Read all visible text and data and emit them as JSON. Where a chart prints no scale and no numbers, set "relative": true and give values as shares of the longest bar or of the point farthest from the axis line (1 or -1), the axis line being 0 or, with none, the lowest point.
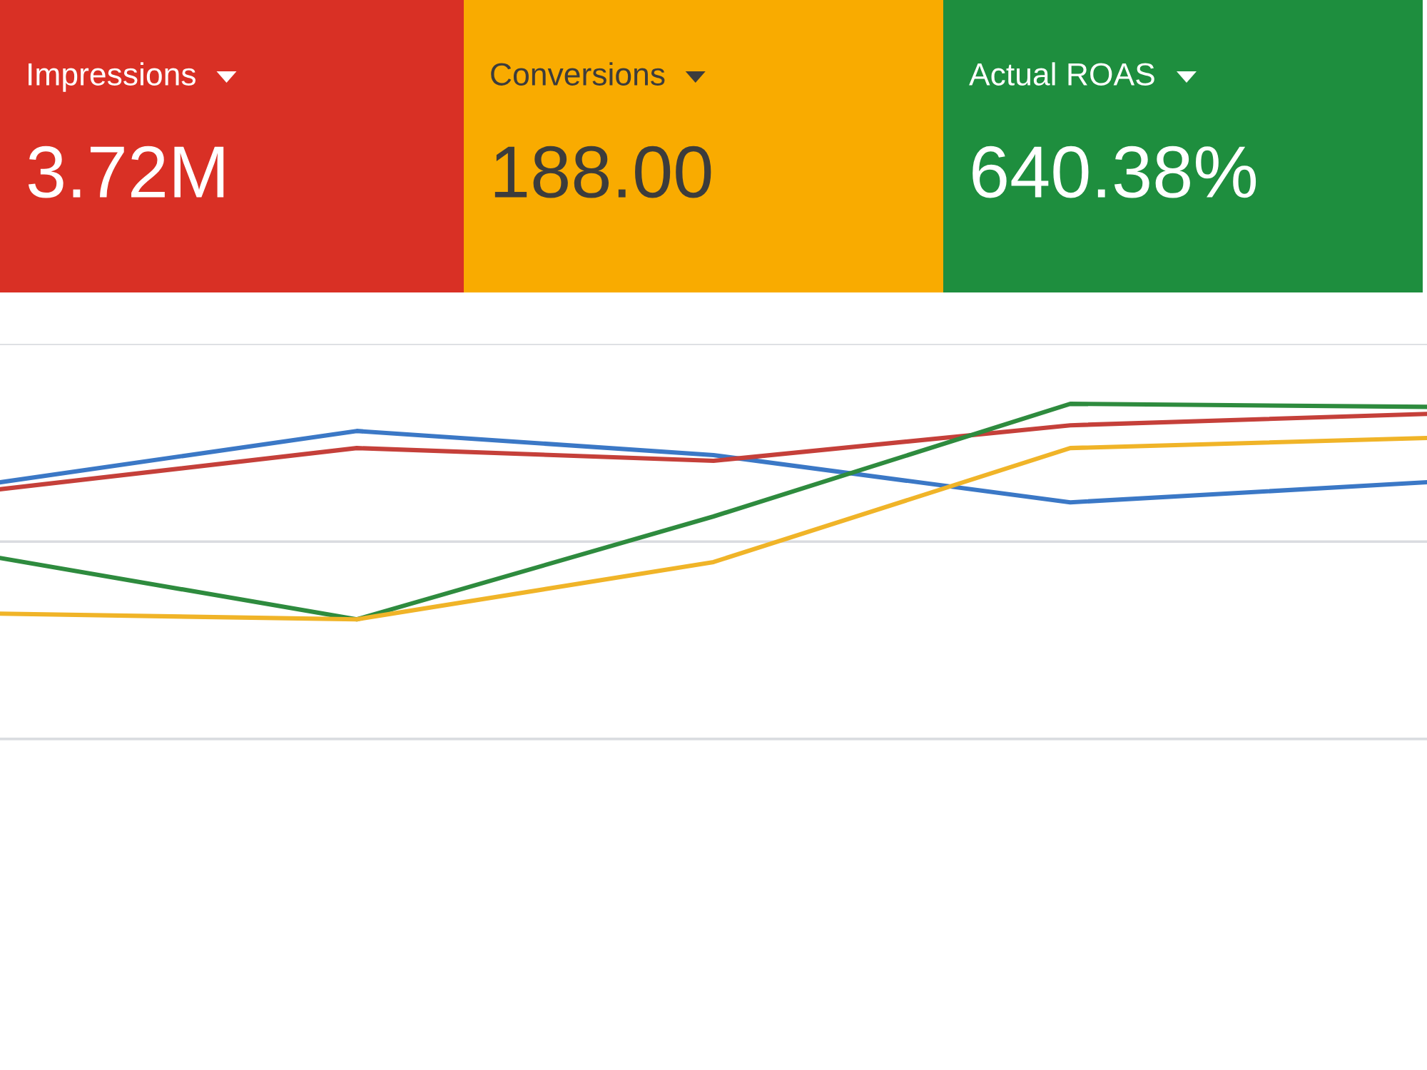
{
  "chart_data": [
    {
      "type": "other",
      "title": "Impressions",
      "annotations": [
        "3.72M"
      ],
      "colors": [
        "#d93025"
      ]
    },
    {
      "type": "other",
      "title": "Conversions",
      "annotations": [
        "188.00"
      ],
      "colors": [
        "#f9ab00"
      ]
    },
    {
      "type": "other",
      "title": "Actual ROAS",
      "annotations": [
        "640.38%"
      ],
      "colors": [
        "#1e8e3e"
      ]
    },
    {
      "type": "line",
      "relative": true,
      "grid": "y",
      "categories": [
        null,
        null,
        null,
        null,
        null
      ],
      "ref_lines": [
        {
          "axis": "y",
          "value": 0.589,
          "color": "#dadce0"
        }
      ],
      "series": [
        {
          "color": "#3b78c6",
          "values": [
            0.766,
            0.919,
            0.847,
            0.706,
            0.766
          ]
        },
        {
          "color": "#c5403a",
          "values": [
            0.745,
            0.868,
            0.83,
            0.936,
            0.97
          ]
        },
        {
          "color": "#2e8b3e",
          "values": [
            0.54,
            0.357,
            0.664,
            1.0,
            0.991
          ]
        },
        {
          "color": "#f0b428",
          "values": [
            0.374,
            0.357,
            0.528,
            0.868,
            0.898
          ]
        }
      ]
    }
  ]
}
